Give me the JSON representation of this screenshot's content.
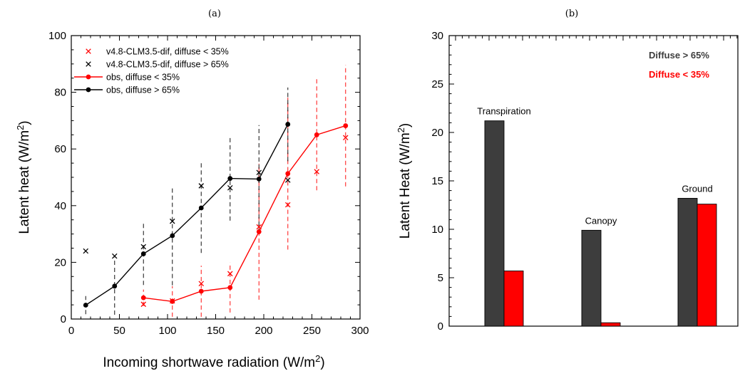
{
  "chart_data": [
    {
      "panel_label": "(a)",
      "type": "line",
      "xlabel_text": "Incoming shortwave radiation (W/m",
      "xlabel_sup": "2",
      "xlabel_close": ")",
      "ylabel_text": "Latent heat (W/m",
      "ylabel_sup": "2",
      "ylabel_close": ")",
      "xlim": [
        0,
        300
      ],
      "ylim": [
        0,
        100
      ],
      "xticks": [
        0,
        50,
        100,
        150,
        200,
        250,
        300
      ],
      "yticks": [
        0,
        20,
        40,
        60,
        80,
        100
      ],
      "grid": false,
      "legend_position": "top-left",
      "series": [
        {
          "name": "v4.8-CLM3.5-dif, diffuse < 35%",
          "style": "marker-x",
          "color": "#ff0000",
          "points": [
            [
              75,
              5.2
            ],
            [
              105,
              6.4
            ],
            [
              135,
              12.5
            ],
            [
              165,
              16.0
            ],
            [
              195,
              32.5
            ],
            [
              225,
              40.3
            ],
            [
              255,
              52.0
            ],
            [
              285,
              64.0
            ]
          ]
        },
        {
          "name": "v4.8-CLM3.5-dif, diffuse > 65%",
          "style": "marker-x",
          "color": "#000000",
          "points": [
            [
              15,
              24.0
            ],
            [
              45,
              22.2
            ],
            [
              75,
              25.5
            ],
            [
              105,
              34.5
            ],
            [
              135,
              47.0
            ],
            [
              165,
              46.3
            ],
            [
              195,
              51.7
            ],
            [
              225,
              49.0
            ]
          ]
        },
        {
          "name": "obs, diffuse < 35%",
          "style": "line-dot",
          "color": "#ff0000",
          "points": [
            [
              75,
              7.5
            ],
            [
              105,
              6.2
            ],
            [
              135,
              9.8
            ],
            [
              165,
              11.1
            ],
            [
              195,
              30.8
            ],
            [
              225,
              51.3
            ],
            [
              255,
              65.0
            ],
            [
              285,
              68.2
            ]
          ],
          "error_low": [
            4.6,
            0.8,
            0.8,
            2.3,
            6.8,
            24.5,
            45.4,
            46.8
          ],
          "error_high": [
            10.4,
            11.6,
            18.8,
            19.9,
            54.8,
            78.1,
            84.6,
            89.6
          ]
        },
        {
          "name": "obs, diffuse > 65%",
          "style": "line-dot",
          "color": "#000000",
          "points": [
            [
              15,
              4.9
            ],
            [
              45,
              11.6
            ],
            [
              75,
              23.0
            ],
            [
              105,
              29.4
            ],
            [
              135,
              39.2
            ],
            [
              165,
              49.6
            ],
            [
              195,
              49.4
            ],
            [
              225,
              68.7
            ]
          ],
          "error_low": [
            1.7,
            1.5,
            12.0,
            11.9,
            23.3,
            34.7,
            30.4,
            55.7
          ],
          "error_high": [
            8.1,
            21.7,
            34.0,
            46.9,
            55.1,
            64.5,
            68.4,
            81.7
          ]
        }
      ]
    },
    {
      "panel_label": "(b)",
      "type": "bar",
      "ylabel_text": "Latent Heat (W/m",
      "ylabel_sup": "2",
      "ylabel_close": ")",
      "ylim": [
        0,
        30
      ],
      "yticks": [
        0,
        5,
        10,
        15,
        20,
        25,
        30
      ],
      "grid": false,
      "legend_position": "top-right",
      "categories": [
        "Transpiration",
        "Canopy",
        "Ground"
      ],
      "series": [
        {
          "name": "Diffuse > 65%",
          "color": "#3d3d3d",
          "values": [
            21.2,
            9.9,
            13.2
          ]
        },
        {
          "name": "Diffuse < 35%",
          "color": "#ff0000",
          "values": [
            5.7,
            0.35,
            12.6
          ]
        }
      ]
    }
  ]
}
